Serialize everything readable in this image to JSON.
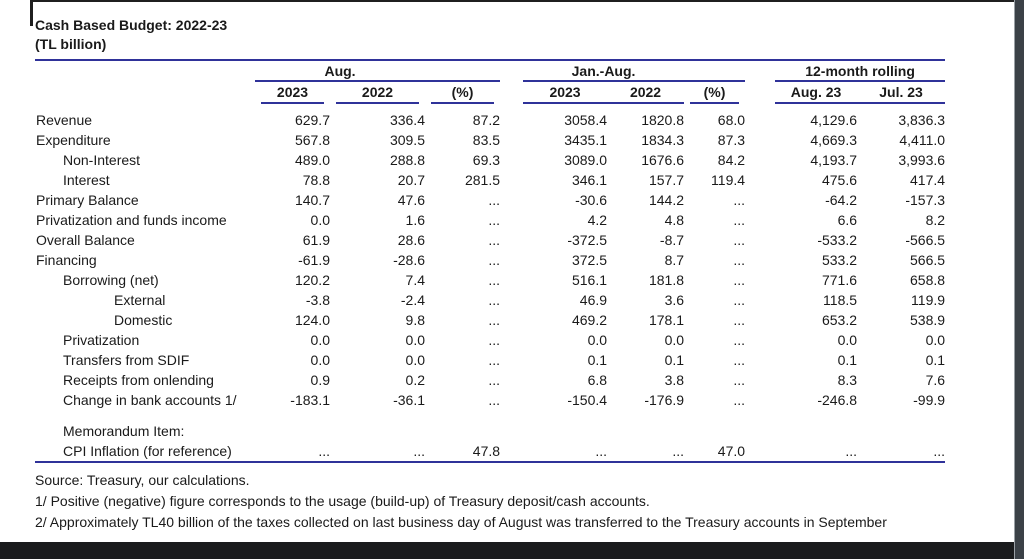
{
  "page": {
    "title_line1": "Cash Based Budget: 2022-23",
    "title_line2": "(TL billion)"
  },
  "table": {
    "groups": [
      {
        "label": "Aug.",
        "sub": [
          "2023",
          "2022",
          "(%)"
        ]
      },
      {
        "label": "Jan.-Aug.",
        "sub": [
          "2023",
          "2022",
          "(%)"
        ]
      },
      {
        "label": "12-month rolling",
        "sub": [
          "Aug. 23",
          "Jul. 23"
        ]
      }
    ],
    "rows": [
      {
        "label": "Revenue",
        "indent": 0,
        "values": [
          "629.7",
          "336.4",
          "87.2",
          "3058.4",
          "1820.8",
          "68.0",
          "4,129.6",
          "3,836.3"
        ]
      },
      {
        "label": "Expenditure",
        "indent": 0,
        "values": [
          "567.8",
          "309.5",
          "83.5",
          "3435.1",
          "1834.3",
          "87.3",
          "4,669.3",
          "4,411.0"
        ]
      },
      {
        "label": "Non-Interest",
        "indent": 1,
        "values": [
          "489.0",
          "288.8",
          "69.3",
          "3089.0",
          "1676.6",
          "84.2",
          "4,193.7",
          "3,993.6"
        ]
      },
      {
        "label": "Interest",
        "indent": 1,
        "values": [
          "78.8",
          "20.7",
          "281.5",
          "346.1",
          "157.7",
          "119.4",
          "475.6",
          "417.4"
        ]
      },
      {
        "label": "Primary Balance",
        "indent": 0,
        "values": [
          "140.7",
          "47.6",
          "...",
          "-30.6",
          "144.2",
          "...",
          "-64.2",
          "-157.3"
        ]
      },
      {
        "label": "Privatization and funds income",
        "indent": 0,
        "values": [
          "0.0",
          "1.6",
          "...",
          "4.2",
          "4.8",
          "...",
          "6.6",
          "8.2"
        ]
      },
      {
        "label": "Overall Balance",
        "indent": 0,
        "values": [
          "61.9",
          "28.6",
          "...",
          "-372.5",
          "-8.7",
          "...",
          "-533.2",
          "-566.5"
        ]
      },
      {
        "label": "Financing",
        "indent": 0,
        "values": [
          "-61.9",
          "-28.6",
          "...",
          "372.5",
          "8.7",
          "...",
          "533.2",
          "566.5"
        ]
      },
      {
        "label": "Borrowing (net)",
        "indent": 1,
        "values": [
          "120.2",
          "7.4",
          "...",
          "516.1",
          "181.8",
          "...",
          "771.6",
          "658.8"
        ]
      },
      {
        "label": "External",
        "indent": 2,
        "values": [
          "-3.8",
          "-2.4",
          "...",
          "46.9",
          "3.6",
          "...",
          "118.5",
          "119.9"
        ]
      },
      {
        "label": "Domestic",
        "indent": 2,
        "values": [
          "124.0",
          "9.8",
          "...",
          "469.2",
          "178.1",
          "...",
          "653.2",
          "538.9"
        ]
      },
      {
        "label": "Privatization",
        "indent": 1,
        "values": [
          "0.0",
          "0.0",
          "...",
          "0.0",
          "0.0",
          "...",
          "0.0",
          "0.0"
        ]
      },
      {
        "label": "Transfers from SDIF",
        "indent": 1,
        "values": [
          "0.0",
          "0.0",
          "...",
          "0.1",
          "0.1",
          "...",
          "0.1",
          "0.1"
        ]
      },
      {
        "label": "Receipts from onlending",
        "indent": 1,
        "values": [
          "0.9",
          "0.2",
          "...",
          "6.8",
          "3.8",
          "...",
          "8.3",
          "7.6"
        ]
      },
      {
        "label": "Change in bank accounts 1/",
        "indent": 1,
        "values": [
          "-183.1",
          "-36.1",
          "...",
          "-150.4",
          "-176.9",
          "...",
          "-246.8",
          "-99.9"
        ]
      }
    ],
    "memo_header": "Memorandum Item:",
    "memo_row": {
      "label": "CPI Inflation (for reference)",
      "values": [
        "...",
        "...",
        "47.8",
        "...",
        "...",
        "47.0",
        "...",
        "..."
      ]
    }
  },
  "footnotes": {
    "source": "Source: Treasury, our calculations.",
    "note1": "1/ Positive (negative) figure corresponds to the usage (build-up) of Treasury deposit/cash accounts.",
    "note2": "2/ Approximately TL40 billion of the taxes collected on last business day of August was transferred to the Treasury accounts in September"
  },
  "colors": {
    "rule_navy": "#2f3299",
    "text": "#1a1a1a"
  }
}
